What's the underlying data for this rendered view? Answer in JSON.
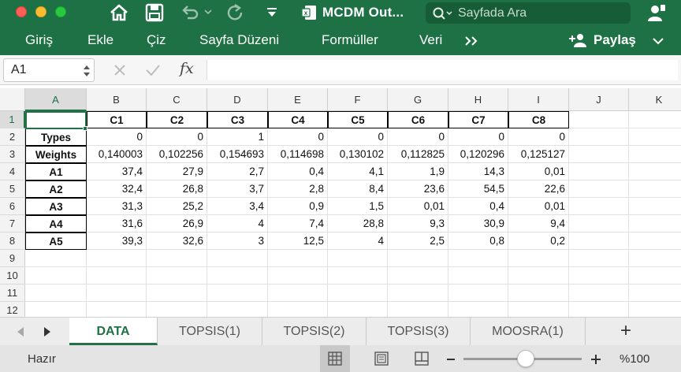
{
  "window": {
    "title": "MCDM Out...",
    "search_placeholder": "Sayfada Ara",
    "accent": "#1e7145"
  },
  "ribbon": {
    "tabs": [
      "Giriş",
      "Ekle",
      "Çiz",
      "Sayfa Düzeni",
      "Formüller",
      "Veri"
    ],
    "share_label": "Paylaş"
  },
  "formula_bar": {
    "name_box": "A1",
    "fx_label": "fx",
    "value": ""
  },
  "grid": {
    "columns": [
      "A",
      "B",
      "C",
      "D",
      "E",
      "F",
      "G",
      "H",
      "I",
      "J",
      "K"
    ],
    "rows": [
      "1",
      "2",
      "3",
      "4",
      "5",
      "6",
      "7",
      "8",
      "9",
      "10",
      "11",
      "12"
    ],
    "cells": [
      [
        "",
        "C1",
        "C2",
        "C3",
        "C4",
        "C5",
        "C6",
        "C7",
        "C8"
      ],
      [
        "Types",
        "0",
        "0",
        "1",
        "0",
        "0",
        "0",
        "0",
        "0"
      ],
      [
        "Weights",
        "0,140003",
        "0,102256",
        "0,154693",
        "0,114698",
        "0,130102",
        "0,112825",
        "0,120296",
        "0,125127"
      ],
      [
        "A1",
        "37,4",
        "27,9",
        "2,7",
        "0,4",
        "4,1",
        "1,9",
        "14,3",
        "0,01"
      ],
      [
        "A2",
        "32,4",
        "26,8",
        "3,7",
        "2,8",
        "8,4",
        "23,6",
        "54,5",
        "22,6"
      ],
      [
        "A3",
        "31,3",
        "25,2",
        "3,4",
        "0,9",
        "1,5",
        "0,01",
        "0,4",
        "0,01"
      ],
      [
        "A4",
        "31,6",
        "26,9",
        "4",
        "7,4",
        "28,8",
        "9,3",
        "30,9",
        "9,4"
      ],
      [
        "A5",
        "39,3",
        "32,6",
        "3",
        "12,5",
        "4",
        "2,5",
        "0,8",
        "0,2"
      ]
    ]
  },
  "sheets": {
    "tabs": [
      "DATA",
      "TOPSIS(1)",
      "TOPSIS(2)",
      "TOPSIS(3)",
      "MOOSRA(1)"
    ],
    "active": "DATA",
    "add_label": "+"
  },
  "status": {
    "text": "Hazır",
    "zoom": "%100"
  }
}
